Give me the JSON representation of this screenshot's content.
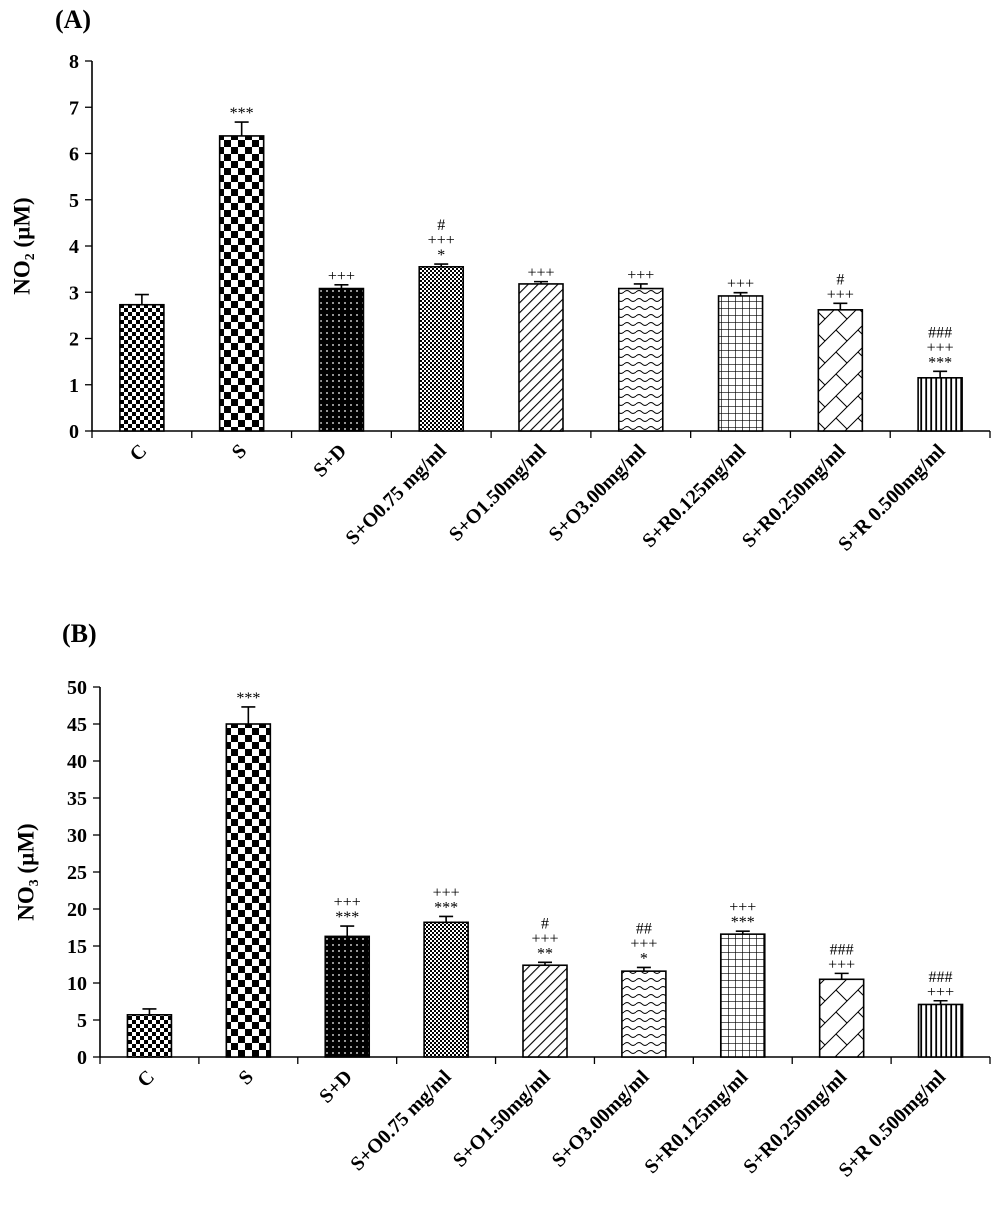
{
  "chart_data": [
    {
      "type": "bar",
      "panel_label": "(A)",
      "ylabel": "NO₂ (µM)",
      "ylim": [
        0,
        8
      ],
      "yticks": [
        0,
        1,
        2,
        3,
        4,
        5,
        6,
        7,
        8
      ],
      "categories": [
        "C",
        "S",
        "S+D",
        "S+O0.75 mg/ml",
        "S+O1.50mg/ml",
        "S+O3.00mg/ml",
        "S+R0.125mg/ml",
        "S+R0.250mg/ml",
        "S+R 0.500mg/ml"
      ],
      "values": [
        2.73,
        6.38,
        3.08,
        3.55,
        3.18,
        3.08,
        2.92,
        2.62,
        1.15
      ],
      "errors": [
        0.22,
        0.3,
        0.08,
        0.06,
        0.05,
        0.1,
        0.07,
        0.14,
        0.14
      ],
      "annotations": [
        [],
        [
          "***"
        ],
        [
          "+++"
        ],
        [
          "#",
          "+++",
          "*"
        ],
        [
          "+++"
        ],
        [
          "+++"
        ],
        [
          "+++"
        ],
        [
          "#",
          "+++"
        ],
        [
          "###",
          "+++",
          "***"
        ]
      ],
      "patterns": [
        "checker-small",
        "checker-large",
        "dots-black",
        "dots-fine",
        "diagonal",
        "wave",
        "grid",
        "diagonal-cross",
        "vertical"
      ]
    },
    {
      "type": "bar",
      "panel_label": "(B)",
      "ylabel": "NO₃ (µM)",
      "ylim": [
        0,
        50
      ],
      "yticks": [
        0,
        5,
        10,
        15,
        20,
        25,
        30,
        35,
        40,
        45,
        50
      ],
      "categories": [
        "C",
        "S",
        "S+D",
        "S+O0.75 mg/ml",
        "S+O1.50mg/ml",
        "S+O3.00mg/ml",
        "S+R0.125mg/ml",
        "S+R0.250mg/ml",
        "S+R 0.500mg/ml"
      ],
      "values": [
        5.7,
        45.0,
        16.3,
        18.2,
        12.4,
        11.6,
        16.6,
        10.5,
        7.1
      ],
      "errors": [
        0.8,
        2.3,
        1.4,
        0.8,
        0.4,
        0.5,
        0.4,
        0.8,
        0.5
      ],
      "annotations": [
        [],
        [
          "***"
        ],
        [
          "+++",
          "***"
        ],
        [
          "+++",
          "***"
        ],
        [
          "#",
          "+++",
          "**"
        ],
        [
          "##",
          "+++",
          "*"
        ],
        [
          "+++",
          "***"
        ],
        [
          "###",
          "+++"
        ],
        [
          "###",
          "+++"
        ]
      ],
      "patterns": [
        "checker-small",
        "checker-large",
        "dots-black",
        "dots-fine",
        "diagonal",
        "wave",
        "grid",
        "diagonal-cross",
        "vertical"
      ]
    }
  ]
}
